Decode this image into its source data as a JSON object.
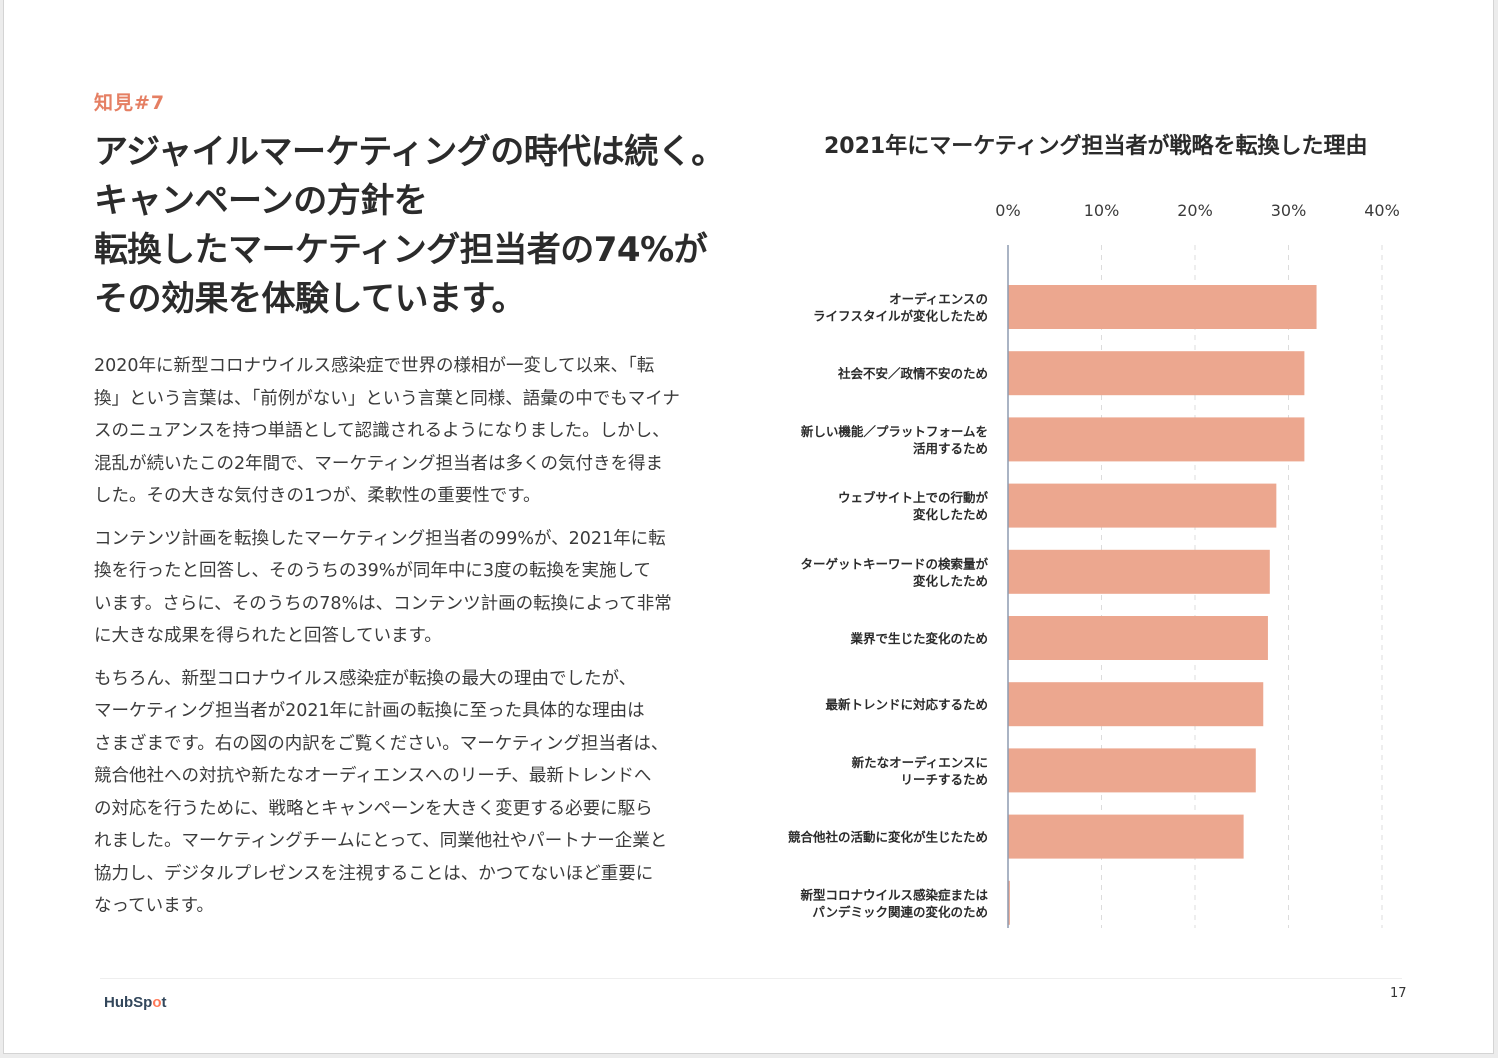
{
  "insight_label": "知見#7",
  "headline_lines": [
    "アジャイルマーケティングの時代は続く。",
    "キャンペーンの方針を",
    "転換したマーケティング担当者の74%が",
    "その効果を体験しています。"
  ],
  "paragraphs": [
    [
      "2020年に新型コロナウイルス感染症で世界の様相が一変して以来、「転",
      "換」という言葉は、「前例がない」という言葉と同様、語彙の中でもマイナ",
      "スのニュアンスを持つ単語として認識されるようになりました。しかし、",
      "混乱が続いたこの2年間で、マーケティング担当者は多くの気付きを得ま",
      "した。その大きな気付きの1つが、柔軟性の重要性です。"
    ],
    [
      "コンテンツ計画を転換したマーケティング担当者の99%が、2021年に転",
      "換を行ったと回答し、そのうちの39%が同年中に3度の転換を実施して",
      "います。さらに、そのうちの78%は、コンテンツ計画の転換によって非常",
      "に大きな成果を得られたと回答しています。"
    ],
    [
      "もちろん、新型コロナウイルス感染症が転換の最大の理由でしたが、",
      "マーケティング担当者が2021年に計画の転換に至った具体的な理由は",
      "さまざまです。右の図の内訳をご覧ください。マーケティング担当者は、",
      "競合他社への対抗や新たなオーディエンスへのリーチ、最新トレンドへ",
      "の対応を行うために、戦略とキャンペーンを大きく変更する必要に駆ら",
      "れました。マーケティングチームにとって、同業他社やパートナー企業と",
      "協力し、デジタルプレゼンスを注視することは、かつてないほど重要に",
      "なっています。"
    ]
  ],
  "chart_data": {
    "type": "bar",
    "orientation": "horizontal",
    "title": "2021年にマーケティング担当者が戦略を転換した理由",
    "xlim": [
      0,
      40
    ],
    "ticks": [
      0,
      10,
      20,
      30,
      40
    ],
    "tick_labels": [
      "0%",
      "10%",
      "20%",
      "30%",
      "40%"
    ],
    "grid": true,
    "bar_color": "#eca78f",
    "categories": [
      [
        "オーディエンスの",
        "ライフスタイルが変化したため"
      ],
      [
        "社会不安／政情不安のため"
      ],
      [
        "新しい機能／プラットフォームを",
        "活用するため"
      ],
      [
        "ウェブサイト上での行動が",
        "変化したため"
      ],
      [
        "ターゲットキーワードの検索量が",
        "変化したため"
      ],
      [
        "業界で生じた変化のため"
      ],
      [
        "最新トレンドに対応するため"
      ],
      [
        "新たなオーディエンスに",
        "リーチするため"
      ],
      [
        "競合他社の活動に変化が生じたため"
      ],
      [
        "新型コロナウイルス感染症または",
        "パンデミック関連の変化のため"
      ]
    ],
    "values": [
      33,
      31.7,
      31.7,
      28.7,
      28,
      27.8,
      27.3,
      26.5,
      25.2,
      0.2
    ]
  },
  "footer": {
    "logo_text_a": "HubSp",
    "logo_text_o": "o",
    "logo_text_b": "t",
    "page_number": "17"
  },
  "colors": {
    "accent": "#e57f63",
    "bar": "#eca78f",
    "logo": "#33475b",
    "logo_accent": "#ff7a59"
  }
}
